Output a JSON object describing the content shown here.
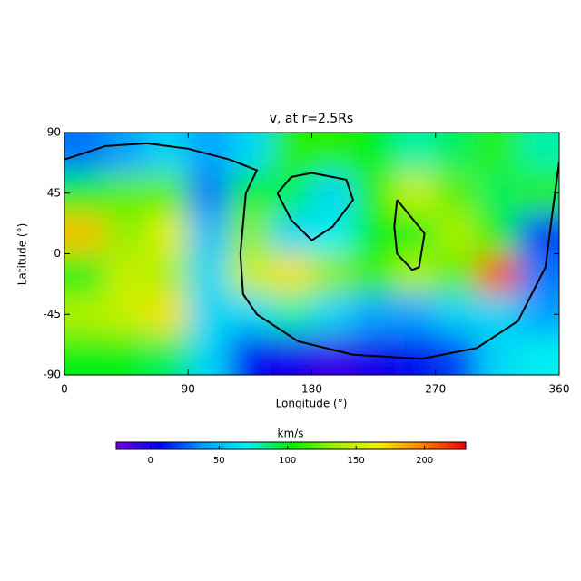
{
  "chart_data": {
    "type": "heatmap",
    "title": "v, at r=2.5Rs",
    "x_label": "Longitude (°)",
    "y_label": "Latitude (°)",
    "xlim": [
      0,
      360
    ],
    "ylim": [
      -90,
      90
    ],
    "xticks": [
      0,
      90,
      180,
      270,
      360
    ],
    "yticks": [
      90,
      45,
      0,
      -45,
      -90
    ],
    "x": [
      15,
      45,
      75,
      105,
      135,
      165,
      195,
      225,
      255,
      285,
      315,
      345
    ],
    "y": [
      75,
      45,
      15,
      -15,
      -45,
      -75
    ],
    "z": [
      [
        30,
        40,
        60,
        40,
        60,
        110,
        110,
        100,
        80,
        90,
        110,
        80
      ],
      [
        100,
        120,
        120,
        30,
        100,
        90,
        60,
        110,
        150,
        120,
        90,
        110
      ],
      [
        180,
        130,
        160,
        50,
        130,
        60,
        70,
        100,
        100,
        140,
        100,
        20
      ],
      [
        100,
        150,
        140,
        60,
        150,
        170,
        130,
        110,
        140,
        120,
        210,
        30
      ],
      [
        140,
        150,
        170,
        60,
        60,
        80,
        60,
        40,
        40,
        60,
        60,
        40
      ],
      [
        100,
        100,
        90,
        60,
        10,
        0,
        -10,
        0,
        10,
        20,
        60,
        70
      ]
    ],
    "colorbar_label": "km/s",
    "clim": [
      -25,
      230
    ],
    "cticks": [
      0,
      50,
      100,
      150,
      200
    ],
    "colormap": [
      "#7000e0",
      "#0000f0",
      "#00a0ff",
      "#00f0f0",
      "#00f000",
      "#a0f000",
      "#f0f000",
      "#ff8000",
      "#f00000"
    ],
    "contour_color": "#000000",
    "contours": [
      {
        "x": [
          0,
          30,
          60,
          90,
          120,
          140,
          132,
          128,
          130,
          140,
          170,
          210,
          260,
          300,
          330,
          350,
          355,
          360
        ],
        "y": [
          70,
          80,
          82,
          78,
          70,
          62,
          45,
          0,
          -30,
          -45,
          -65,
          -75,
          -78,
          -70,
          -50,
          -10,
          30,
          68
        ]
      },
      {
        "x": [
          155,
          165,
          180,
          205,
          210,
          195,
          180,
          165,
          155
        ],
        "y": [
          45,
          57,
          60,
          55,
          40,
          20,
          10,
          25,
          45
        ]
      },
      {
        "x": [
          242,
          250,
          262,
          258,
          253,
          242,
          240,
          242
        ],
        "y": [
          40,
          30,
          15,
          -10,
          -12,
          0,
          20,
          40
        ]
      }
    ]
  }
}
